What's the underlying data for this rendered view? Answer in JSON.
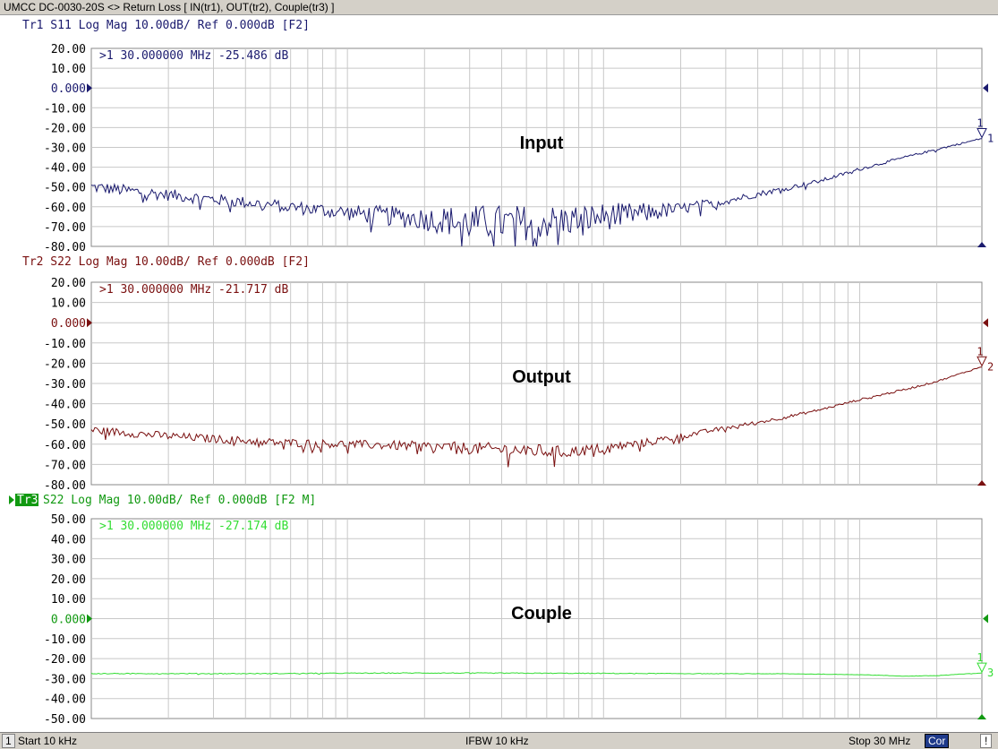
{
  "window": {
    "title": "UMCC   DC-0030-20S <> Return Loss [ IN(tr1), OUT(tr2), Couple(tr3) ]"
  },
  "status_bar": {
    "channel": "1",
    "start": "Start 10 kHz",
    "ifbw": "IFBW 10 kHz",
    "stop": "Stop 30 MHz",
    "cor": "Cor",
    "warning": "!"
  },
  "chart_data": [
    {
      "type": "line",
      "trace_label": "Tr1",
      "header": "Tr1 S11 Log Mag 10.00dB/ Ref 0.000dB [F2]",
      "marker_readout": ">1   30.000000 MHz -25.486 dB",
      "annotation": "Input",
      "color": "#1a1a6e",
      "ref_color": "#1a1a6e",
      "ylim": [
        -80,
        20
      ],
      "y_ticks": [
        "20.00",
        "10.00",
        "0.000",
        "-10.00",
        "-20.00",
        "-30.00",
        "-40.00",
        "-50.00",
        "-60.00",
        "-70.00",
        "-80.00"
      ],
      "xlim_mhz": [
        0.01,
        30
      ],
      "marker": {
        "number": "1",
        "x_mhz": 30,
        "y_db": -25.486
      },
      "series": [
        {
          "x_mhz": [
            0.01,
            0.02,
            0.05,
            0.1,
            0.2,
            0.3,
            0.5,
            0.7,
            1,
            1.5,
            2,
            3,
            5,
            7,
            10,
            15,
            20,
            30
          ],
          "y_db": [
            -50,
            -54,
            -59,
            -63,
            -66,
            -68,
            -68,
            -67,
            -65,
            -63,
            -61,
            -57,
            -51,
            -47,
            -41,
            -35,
            -31,
            -25.5
          ]
        }
      ],
      "noise_db": [
        3,
        3,
        3,
        4,
        6,
        9,
        9,
        8,
        7,
        5,
        3,
        2,
        1.2,
        1,
        0.8,
        0.6,
        0.5,
        0.4
      ]
    },
    {
      "type": "line",
      "trace_label": "Tr2",
      "header": "Tr2 S22 Log Mag 10.00dB/ Ref 0.000dB [F2]",
      "marker_readout": ">1   30.000000 MHz -21.717 dB",
      "annotation": "Output",
      "color": "#7a1010",
      "ref_color": "#7a1010",
      "ylim": [
        -80,
        20
      ],
      "y_ticks": [
        "20.00",
        "10.00",
        "0.000",
        "-10.00",
        "-20.00",
        "-30.00",
        "-40.00",
        "-50.00",
        "-60.00",
        "-70.00",
        "-80.00"
      ],
      "xlim_mhz": [
        0.01,
        30
      ],
      "marker": {
        "number": "2",
        "x_mhz": 30,
        "y_db": -21.717
      },
      "series": [
        {
          "x_mhz": [
            0.01,
            0.02,
            0.05,
            0.1,
            0.2,
            0.3,
            0.5,
            0.7,
            1,
            1.5,
            2,
            3,
            5,
            7,
            10,
            15,
            20,
            30
          ],
          "y_db": [
            -53,
            -56,
            -59,
            -60,
            -61,
            -62,
            -63,
            -64,
            -62,
            -59,
            -56,
            -52,
            -47,
            -43,
            -38,
            -33,
            -29,
            -21.7
          ]
        }
      ],
      "noise_db": [
        2,
        2,
        2,
        2,
        2.5,
        3,
        3.5,
        3,
        2.5,
        2,
        1.5,
        1,
        0.8,
        0.6,
        0.5,
        0.5,
        0.4,
        0.3
      ]
    },
    {
      "type": "line",
      "trace_label": "Tr3",
      "header": "S22 Log Mag 10.00dB/ Ref 0.000dB [F2 M]",
      "marker_readout": ">1   30.000000 MHz -27.174 dB",
      "annotation": "Couple",
      "color": "#33dd33",
      "ref_color": "#119911",
      "ylim": [
        -50,
        50
      ],
      "y_ticks": [
        "50.00",
        "40.00",
        "30.00",
        "20.00",
        "10.00",
        "0.000",
        "-10.00",
        "-20.00",
        "-30.00",
        "-40.00",
        "-50.00"
      ],
      "xlim_mhz": [
        0.01,
        30
      ],
      "marker": {
        "number": "3",
        "x_mhz": 30,
        "y_db": -27.174
      },
      "series": [
        {
          "x_mhz": [
            0.01,
            0.05,
            0.1,
            0.2,
            0.5,
            1,
            2,
            5,
            10,
            15,
            20,
            30
          ],
          "y_db": [
            -27.5,
            -27.5,
            -27.3,
            -27.2,
            -27.3,
            -27.4,
            -27.5,
            -27.6,
            -28,
            -28.8,
            -28.5,
            -27.2
          ]
        }
      ],
      "noise_db": [
        0.2,
        0.2,
        0.2,
        0.2,
        0.2,
        0.2,
        0.15,
        0.1,
        0.1,
        0.1,
        0.1,
        0.1
      ]
    }
  ]
}
